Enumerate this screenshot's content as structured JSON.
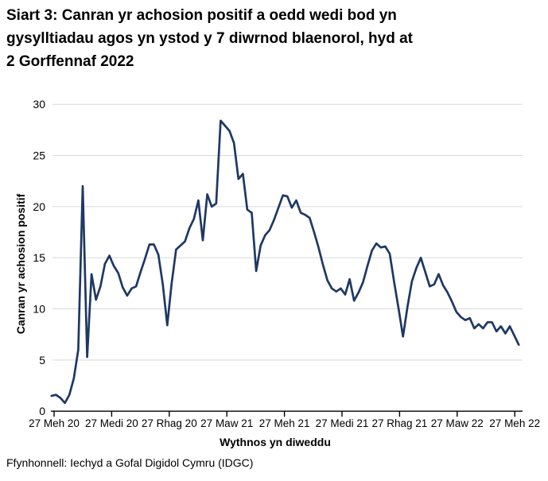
{
  "header": {
    "title_text": "Siart 3: Canran yr achosion positif a oedd wedi bod yn\ngysylltiadau agos yn ystod y 7 diwrnod blaenorol, hyd at\n2 Gorffennaf 2022"
  },
  "footer": {
    "source": "Ffynhonnell: Iechyd a Gofal Digidol Cymru (IDGC)"
  },
  "chart_data": {
    "type": "line",
    "title": "Siart 3: Canran yr achosion positif a oedd wedi bod yn gysylltiadau agos yn ystod y 7 diwrnod blaenorol, hyd at 2 Gorffennaf 2022",
    "xlabel": "Wythnos yn diweddu",
    "ylabel": "Canran yr achosion positif",
    "x_tick_labels": [
      "27 Meh 20",
      "27 Medi 20",
      "27 Rhag 20",
      "27 Maw 21",
      "27 Meh 21",
      "27 Medi 21",
      "27 Rhag 21",
      "27 Maw 22",
      "27 Meh 22"
    ],
    "y_ticks": [
      0,
      5,
      10,
      15,
      20,
      25,
      30
    ],
    "ylim": [
      0,
      30
    ],
    "grid": "horizontal",
    "legend": "none",
    "line_color": "#1F3864",
    "grid_color": "#D9D9D9",
    "axis_color": "#000000",
    "series": [
      {
        "name": "Canran yr achosion positif",
        "values": [
          1.5,
          1.6,
          1.3,
          0.8,
          1.6,
          3.2,
          6.0,
          22.0,
          5.3,
          13.4,
          10.9,
          12.2,
          14.4,
          15.2,
          14.2,
          13.5,
          12.1,
          11.3,
          12.0,
          12.2,
          13.6,
          14.9,
          16.3,
          16.3,
          15.3,
          12.4,
          8.4,
          12.5,
          15.8,
          16.2,
          16.6,
          17.9,
          18.8,
          20.6,
          16.7,
          21.2,
          20.0,
          20.3,
          28.4,
          27.9,
          27.4,
          26.2,
          22.7,
          23.2,
          19.7,
          19.4,
          13.7,
          16.2,
          17.2,
          17.7,
          18.7,
          19.9,
          21.1,
          21.0,
          19.9,
          20.6,
          19.4,
          19.2,
          18.9,
          17.5,
          16.0,
          14.3,
          12.8,
          12.0,
          11.7,
          12.0,
          11.4,
          12.9,
          10.8,
          11.6,
          12.6,
          14.2,
          15.7,
          16.4,
          16.0,
          16.1,
          15.4,
          12.6,
          10.0,
          7.3,
          10.2,
          12.7,
          14.0,
          15.0,
          13.6,
          12.2,
          12.4,
          13.4,
          12.3,
          11.6,
          10.7,
          9.7,
          9.2,
          8.9,
          9.1,
          8.1,
          8.5,
          8.1,
          8.7,
          8.7,
          7.8,
          8.3,
          7.6,
          8.3,
          7.4,
          6.5
        ]
      }
    ]
  }
}
